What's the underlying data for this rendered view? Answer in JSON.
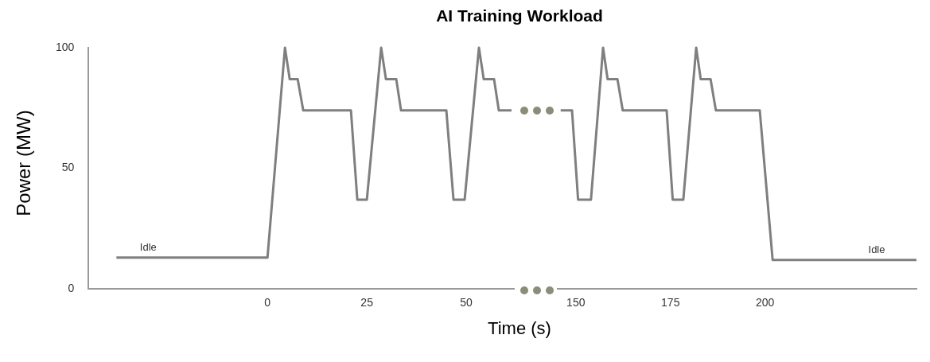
{
  "chart_data": [
    {
      "type": "line",
      "title": "AI Training Workload",
      "xlabel": "Time (s)",
      "ylabel": "Power (MW)",
      "xlim": [
        -45,
        62
      ],
      "xticks": [
        0,
        25,
        50
      ],
      "ylim": [
        0,
        100
      ],
      "yticks": [
        0,
        50,
        100
      ],
      "grid": false,
      "legend": false,
      "series": [
        {
          "color": "#7f7f7f",
          "x": [
            -38,
            0,
            4.4,
            5.6,
            7.6,
            9,
            21,
            22.6,
            25,
            28.6,
            29.8,
            32.4,
            33.6,
            45,
            46.8,
            49.6,
            53.2,
            54.4,
            57,
            58.2,
            61.4
          ],
          "values": [
            13,
            13,
            100,
            87,
            87,
            74,
            74,
            37,
            37,
            100,
            87,
            87,
            74,
            74,
            37,
            37,
            100,
            87,
            87,
            74,
            74
          ]
        }
      ],
      "annotations": [
        "Idle"
      ]
    },
    {
      "type": "line",
      "xlim": [
        145,
        240
      ],
      "xticks": [
        150,
        175,
        200
      ],
      "ylim": [
        0,
        100
      ],
      "yticks": [
        0,
        50,
        100
      ],
      "grid": false,
      "legend": false,
      "tick_labels": "x",
      "series": [
        {
          "color": "#7f7f7f",
          "x": [
            146,
            149,
            150.6,
            154,
            157.2,
            158.4,
            161,
            162.4,
            174,
            175.6,
            178.4,
            181.8,
            183,
            185.6,
            187,
            198.6,
            202,
            240
          ],
          "values": [
            74,
            74,
            37,
            37,
            100,
            87,
            87,
            74,
            74,
            37,
            37,
            100,
            87,
            87,
            74,
            74,
            12,
            12
          ]
        }
      ],
      "annotations": [
        "Idle"
      ]
    }
  ]
}
